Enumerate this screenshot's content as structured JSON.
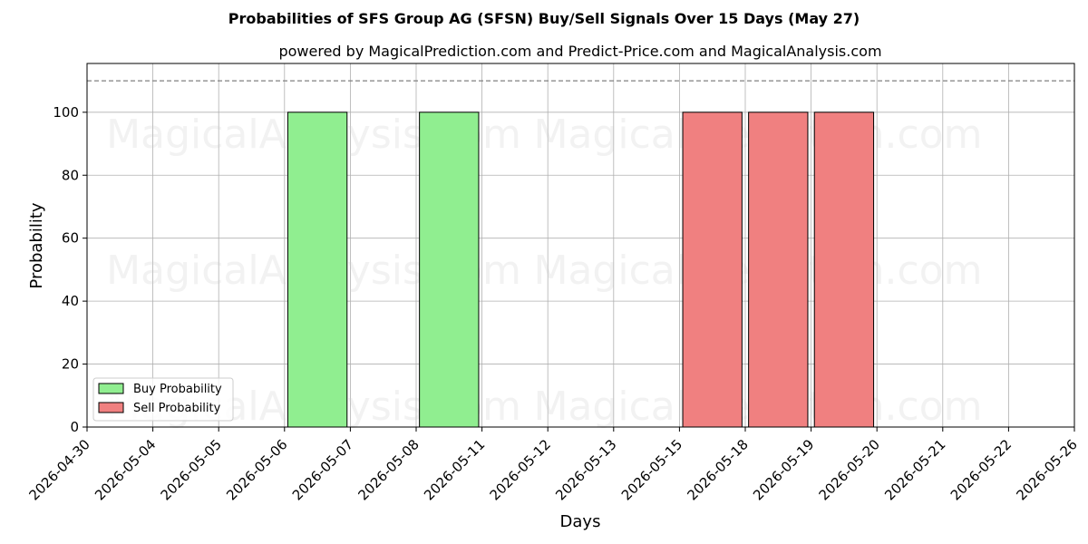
{
  "chart_data": {
    "type": "bar",
    "title": "Probabilities of SFS Group AG (SFSN) Buy/Sell Signals Over 15 Days (May 27)",
    "subtitle": "powered by MagicalPrediction.com and Predict-Price.com and MagicalAnalysis.com",
    "xlabel": "Days",
    "ylabel": "Probability",
    "ylim": [
      0,
      115.5
    ],
    "yticks": [
      0,
      20,
      40,
      60,
      80,
      100
    ],
    "reference_line": 110,
    "categories": [
      "2026-04-30",
      "2026-05-04",
      "2026-05-05",
      "2026-05-06",
      "2026-05-07",
      "2026-05-08",
      "2026-05-11",
      "2026-05-12",
      "2026-05-13",
      "2026-05-15",
      "2026-05-18",
      "2026-05-19",
      "2026-05-20",
      "2026-05-21",
      "2026-05-22",
      "2026-05-26"
    ],
    "series": [
      {
        "name": "Buy Probability",
        "color": "#90ee90",
        "bars": [
          {
            "x": "2026-05-06",
            "value": 100
          },
          {
            "x": "2026-05-08",
            "value": 100
          }
        ]
      },
      {
        "name": "Sell Probability",
        "color": "#f08080",
        "bars": [
          {
            "x": "2026-05-15",
            "value": 100
          },
          {
            "x": "2026-05-18",
            "value": 100
          },
          {
            "x": "2026-05-19",
            "value": 100
          }
        ]
      }
    ],
    "grid": true,
    "legend": "lower-left",
    "watermarks": [
      "MagicalAnalysis.com",
      "MagicalPrediction.com"
    ]
  }
}
